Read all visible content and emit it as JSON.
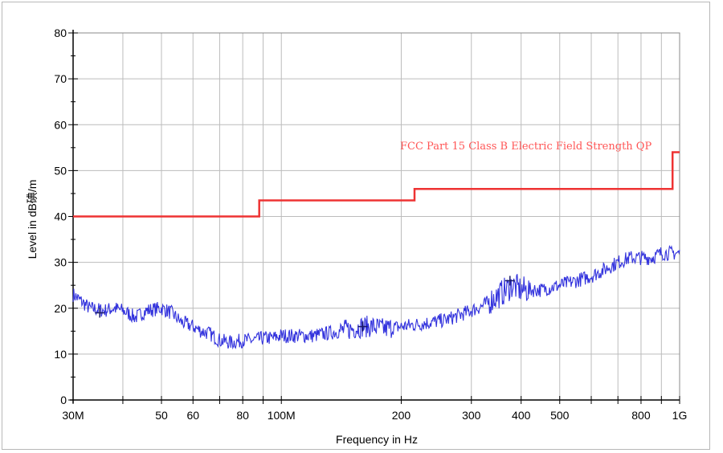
{
  "chart_data": {
    "type": "line",
    "title": "",
    "xlabel": "Frequency in Hz",
    "ylabel": "Level in dB碘/m",
    "x_scale": "log",
    "xlim": [
      30000000,
      1000000000
    ],
    "ylim": [
      0,
      80
    ],
    "grid": true,
    "x_ticks": [
      {
        "value": 30000000,
        "label": "30M"
      },
      {
        "value": 50000000,
        "label": "50"
      },
      {
        "value": 60000000,
        "label": "60"
      },
      {
        "value": 80000000,
        "label": "80"
      },
      {
        "value": 100000000,
        "label": "100M"
      },
      {
        "value": 200000000,
        "label": "200"
      },
      {
        "value": 300000000,
        "label": "300"
      },
      {
        "value": 400000000,
        "label": "400"
      },
      {
        "value": 500000000,
        "label": "500"
      },
      {
        "value": 800000000,
        "label": "800"
      },
      {
        "value": 1000000000,
        "label": "1G"
      }
    ],
    "y_ticks": [
      0,
      10,
      20,
      30,
      40,
      50,
      60,
      70,
      80
    ],
    "series": [
      {
        "name": "FCC Part 15 Class B Electric Field Strength QP",
        "color": "#ee3333",
        "style": "step",
        "x": [
          30000000,
          88000000,
          88000000,
          216000000,
          216000000,
          960000000,
          960000000,
          1000000000
        ],
        "y": [
          40,
          40,
          43.5,
          43.5,
          46,
          46,
          54,
          54
        ]
      },
      {
        "color": "#3333dd",
        "style": "noisy-line",
        "x": [
          30000000,
          33000000,
          36000000,
          38000000,
          40000000,
          43000000,
          46000000,
          50000000,
          53000000,
          56000000,
          60000000,
          63000000,
          66000000,
          70000000,
          75000000,
          80000000,
          85000000,
          90000000,
          95000000,
          100000000,
          110000000,
          120000000,
          130000000,
          140000000,
          150000000,
          160000000,
          170000000,
          180000000,
          200000000,
          220000000,
          240000000,
          260000000,
          280000000,
          300000000,
          320000000,
          340000000,
          360000000,
          380000000,
          400000000,
          450000000,
          500000000,
          550000000,
          600000000,
          650000000,
          700000000,
          750000000,
          800000000,
          850000000,
          900000000,
          950000000,
          1000000000
        ],
        "y": [
          23,
          20,
          19.5,
          20,
          19.5,
          18,
          19.5,
          20,
          19,
          17,
          16,
          15,
          14.5,
          13,
          12.5,
          13,
          13,
          13.5,
          13.5,
          14,
          14,
          14,
          14.5,
          15,
          15.5,
          16,
          16,
          15.5,
          16,
          16.5,
          17,
          17.5,
          18.5,
          19.5,
          20.5,
          22,
          23.5,
          25,
          24,
          24,
          25,
          26,
          27,
          28.5,
          30,
          31,
          31,
          31,
          32,
          32,
          32
        ]
      }
    ],
    "markers": [
      {
        "symbol": "+",
        "x": 35000000,
        "y": 19
      },
      {
        "symbol": "+",
        "x": 160000000,
        "y": 16
      },
      {
        "symbol": "+",
        "x": 375000000,
        "y": 26
      }
    ],
    "annotations": [
      {
        "text": "FCC Part 15 Class B Electric Field Strength QP",
        "color": "#ff5555"
      }
    ]
  }
}
